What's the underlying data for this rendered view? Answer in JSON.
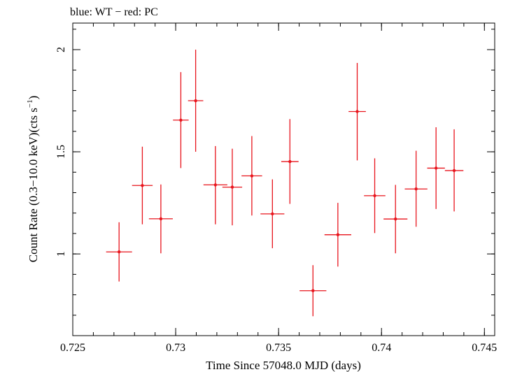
{
  "chart_data": {
    "type": "scatter",
    "title": "blue: WT − red: PC",
    "xlabel": "Time Since 57048.0 MJD (days)",
    "ylabel": "Count Rate (0.3−10.0 keV)(cts s",
    "ylabel_sup": "−1",
    "ylabel_tail": ")",
    "xlim": [
      0.725,
      0.7455
    ],
    "ylim": [
      0.6,
      2.13
    ],
    "x_ticks": [
      "0.725",
      "0.73",
      "0.735",
      "0.74",
      "0.745"
    ],
    "x_tick_values": [
      0.725,
      0.73,
      0.735,
      0.74,
      0.745
    ],
    "y_ticks": [
      "1",
      "1.5",
      "2"
    ],
    "y_tick_values": [
      1,
      1.5,
      2
    ],
    "x_minor_step": 0.001,
    "y_minor_step": 0.1,
    "grid": false,
    "series": [
      {
        "color": "#e8141c",
        "points": [
          {
            "x": 0.72725,
            "xerr": 0.00063,
            "y": 1.01,
            "ylo": 0.865,
            "yhi": 1.155
          },
          {
            "x": 0.72838,
            "xerr": 0.0005,
            "y": 1.335,
            "ylo": 1.145,
            "yhi": 1.525
          },
          {
            "x": 0.72928,
            "xerr": 0.00058,
            "y": 1.172,
            "ylo": 1.003,
            "yhi": 1.34
          },
          {
            "x": 0.73025,
            "xerr": 0.00038,
            "y": 1.655,
            "ylo": 1.42,
            "yhi": 1.89
          },
          {
            "x": 0.73097,
            "xerr": 0.00037,
            "y": 1.75,
            "ylo": 1.5,
            "yhi": 2.0
          },
          {
            "x": 0.73193,
            "xerr": 0.00058,
            "y": 1.338,
            "ylo": 1.145,
            "yhi": 1.528
          },
          {
            "x": 0.73275,
            "xerr": 0.00048,
            "y": 1.327,
            "ylo": 1.14,
            "yhi": 1.515
          },
          {
            "x": 0.7337,
            "xerr": 0.0005,
            "y": 1.382,
            "ylo": 1.188,
            "yhi": 1.577
          },
          {
            "x": 0.7347,
            "xerr": 0.00058,
            "y": 1.196,
            "ylo": 1.028,
            "yhi": 1.365
          },
          {
            "x": 0.73555,
            "xerr": 0.00042,
            "y": 1.452,
            "ylo": 1.245,
            "yhi": 1.66
          },
          {
            "x": 0.73667,
            "xerr": 0.00065,
            "y": 0.82,
            "ylo": 0.695,
            "yhi": 0.945
          },
          {
            "x": 0.73788,
            "xerr": 0.00065,
            "y": 1.094,
            "ylo": 0.938,
            "yhi": 1.25
          },
          {
            "x": 0.73882,
            "xerr": 0.00042,
            "y": 1.697,
            "ylo": 1.458,
            "yhi": 1.935
          },
          {
            "x": 0.73967,
            "xerr": 0.00052,
            "y": 1.285,
            "ylo": 1.102,
            "yhi": 1.468
          },
          {
            "x": 0.74068,
            "xerr": 0.00058,
            "y": 1.171,
            "ylo": 1.003,
            "yhi": 1.338
          },
          {
            "x": 0.74168,
            "xerr": 0.00055,
            "y": 1.318,
            "ylo": 1.133,
            "yhi": 1.505
          },
          {
            "x": 0.74265,
            "xerr": 0.00043,
            "y": 1.42,
            "ylo": 1.22,
            "yhi": 1.62
          },
          {
            "x": 0.74353,
            "xerr": 0.00045,
            "y": 1.408,
            "ylo": 1.208,
            "yhi": 1.61
          }
        ]
      }
    ]
  }
}
